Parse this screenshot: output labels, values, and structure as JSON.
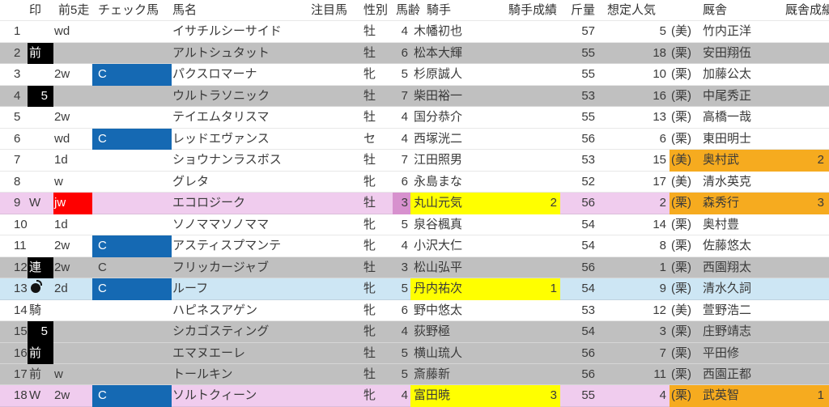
{
  "table": {
    "headers": [
      "印",
      "前5走",
      "チェック馬",
      "馬名",
      "注目馬",
      "性別",
      "馬齢",
      "騎手",
      "騎手成績",
      "斤量",
      "想定人気",
      "厩舎",
      "厩舎成績"
    ]
  },
  "colors": {
    "row_gray": "#c0c0c0",
    "row_pink": "#f0ccee",
    "row_lightblue": "#cde6f4",
    "check_blue": "#1569b3",
    "alert_red": "#fe0000",
    "highlight_yellow": "#ffff00",
    "highlight_orange": "#f6ab1f",
    "age_violet": "#d791ce",
    "mark_black": "#000000"
  },
  "rows": [
    {
      "num": "1",
      "mark": "",
      "mark_style": "none",
      "last5": "wd",
      "last5_style": "plain",
      "check": "",
      "check_style": "none",
      "horse": "イサチルシーサイド",
      "attention": "",
      "sex": "牡",
      "age": "4",
      "age_violet": false,
      "jockey": "木幡初也",
      "jockey_score": "",
      "jockey_yellow": false,
      "weight": "57",
      "pop": "5",
      "region": "(美)",
      "stable": "竹内正洋",
      "stable_score": "",
      "stable_orange": false,
      "bg": "white"
    },
    {
      "num": "2",
      "mark": "前",
      "mark_style": "box",
      "last5": "",
      "last5_style": "none",
      "check": "",
      "check_style": "none",
      "horse": "アルトシュタット",
      "attention": "",
      "sex": "牡",
      "age": "6",
      "age_violet": false,
      "jockey": "松本大輝",
      "jockey_score": "",
      "jockey_yellow": false,
      "weight": "55",
      "pop": "18",
      "region": "(栗)",
      "stable": "安田翔伍",
      "stable_score": "",
      "stable_orange": false,
      "bg": "gray"
    },
    {
      "num": "3",
      "mark": "",
      "mark_style": "none",
      "last5": "2w",
      "last5_style": "plain",
      "check": "C",
      "check_style": "blue",
      "horse": "パクスロマーナ",
      "attention": "",
      "sex": "牝",
      "age": "5",
      "age_violet": false,
      "jockey": "杉原誠人",
      "jockey_score": "",
      "jockey_yellow": false,
      "weight": "55",
      "pop": "10",
      "region": "(栗)",
      "stable": "加藤公太",
      "stable_score": "",
      "stable_orange": false,
      "bg": "white"
    },
    {
      "num": "4",
      "mark": "5",
      "mark_style": "box-right",
      "last5": "",
      "last5_style": "none",
      "check": "",
      "check_style": "none",
      "horse": "ウルトラソニック",
      "attention": "",
      "sex": "牡",
      "age": "7",
      "age_violet": false,
      "jockey": "柴田裕一",
      "jockey_score": "",
      "jockey_yellow": false,
      "weight": "53",
      "pop": "16",
      "region": "(栗)",
      "stable": "中尾秀正",
      "stable_score": "",
      "stable_orange": false,
      "bg": "gray"
    },
    {
      "num": "5",
      "mark": "",
      "mark_style": "none",
      "last5": "2w",
      "last5_style": "plain",
      "check": "",
      "check_style": "none",
      "horse": "テイエムタリスマ",
      "attention": "",
      "sex": "牡",
      "age": "4",
      "age_violet": false,
      "jockey": "国分恭介",
      "jockey_score": "",
      "jockey_yellow": false,
      "weight": "55",
      "pop": "13",
      "region": "(栗)",
      "stable": "高橋一哉",
      "stable_score": "",
      "stable_orange": false,
      "bg": "white"
    },
    {
      "num": "6",
      "mark": "",
      "mark_style": "none",
      "last5": "wd",
      "last5_style": "plain",
      "check": "C",
      "check_style": "blue",
      "horse": "レッドエヴァンス",
      "attention": "",
      "sex": "セ",
      "age": "4",
      "age_violet": false,
      "jockey": "西塚洸二",
      "jockey_score": "",
      "jockey_yellow": false,
      "weight": "56",
      "pop": "6",
      "region": "(栗)",
      "stable": "東田明士",
      "stable_score": "",
      "stable_orange": false,
      "bg": "white"
    },
    {
      "num": "7",
      "mark": "",
      "mark_style": "none",
      "last5": "1d",
      "last5_style": "plain",
      "check": "",
      "check_style": "none",
      "horse": "ショウナンラスボス",
      "attention": "",
      "sex": "牡",
      "age": "7",
      "age_violet": false,
      "jockey": "江田照男",
      "jockey_score": "",
      "jockey_yellow": false,
      "weight": "53",
      "pop": "15",
      "region": "(美)",
      "stable": "奥村武",
      "stable_score": "2",
      "stable_orange": true,
      "bg": "white"
    },
    {
      "num": "8",
      "mark": "",
      "mark_style": "none",
      "last5": "w",
      "last5_style": "plain",
      "check": "",
      "check_style": "none",
      "horse": "グレタ",
      "attention": "",
      "sex": "牝",
      "age": "6",
      "age_violet": false,
      "jockey": "永島まな",
      "jockey_score": "",
      "jockey_yellow": false,
      "weight": "52",
      "pop": "17",
      "region": "(美)",
      "stable": "清水英克",
      "stable_score": "",
      "stable_orange": false,
      "bg": "white"
    },
    {
      "num": "9",
      "mark": "W",
      "mark_style": "plain",
      "last5": "jw",
      "last5_style": "red",
      "check": "",
      "check_style": "none",
      "horse": "エコロジーク",
      "attention": "",
      "sex": "牡",
      "age": "3",
      "age_violet": true,
      "jockey": "丸山元気",
      "jockey_score": "2",
      "jockey_yellow": true,
      "weight": "56",
      "pop": "2",
      "region": "(栗)",
      "stable": "森秀行",
      "stable_score": "3",
      "stable_orange": true,
      "bg": "pink"
    },
    {
      "num": "10",
      "mark": "",
      "mark_style": "none",
      "last5": "1d",
      "last5_style": "plain",
      "check": "",
      "check_style": "none",
      "horse": "ソノママソノママ",
      "attention": "",
      "sex": "牝",
      "age": "5",
      "age_violet": false,
      "jockey": "泉谷楓真",
      "jockey_score": "",
      "jockey_yellow": false,
      "weight": "54",
      "pop": "14",
      "region": "(栗)",
      "stable": "奥村豊",
      "stable_score": "",
      "stable_orange": false,
      "bg": "white"
    },
    {
      "num": "11",
      "mark": "",
      "mark_style": "none",
      "last5": "2w",
      "last5_style": "plain",
      "check": "C",
      "check_style": "blue",
      "horse": "アスティスプマンテ",
      "attention": "",
      "sex": "牝",
      "age": "4",
      "age_violet": false,
      "jockey": "小沢大仁",
      "jockey_score": "",
      "jockey_yellow": false,
      "weight": "54",
      "pop": "8",
      "region": "(栗)",
      "stable": "佐藤悠太",
      "stable_score": "",
      "stable_orange": false,
      "bg": "white"
    },
    {
      "num": "12",
      "mark": "連",
      "mark_style": "box",
      "last5": "2w",
      "last5_style": "plain",
      "check": "C",
      "check_style": "plain",
      "horse": "フリッカージャブ",
      "attention": "",
      "sex": "牡",
      "age": "3",
      "age_violet": false,
      "jockey": "松山弘平",
      "jockey_score": "",
      "jockey_yellow": false,
      "weight": "56",
      "pop": "1",
      "region": "(栗)",
      "stable": "西園翔太",
      "stable_score": "",
      "stable_orange": false,
      "bg": "gray"
    },
    {
      "num": "13",
      "mark": "",
      "mark_style": "bomb",
      "last5": "2d",
      "last5_style": "plain",
      "check": "C",
      "check_style": "blue",
      "horse": "ルーフ",
      "attention": "",
      "sex": "牝",
      "age": "5",
      "age_violet": false,
      "jockey": "丹内祐次",
      "jockey_score": "1",
      "jockey_yellow": true,
      "weight": "54",
      "pop": "9",
      "region": "(栗)",
      "stable": "清水久詞",
      "stable_score": "",
      "stable_orange": false,
      "bg": "blue"
    },
    {
      "num": "14",
      "mark": "騎",
      "mark_style": "plain",
      "last5": "",
      "last5_style": "none",
      "check": "",
      "check_style": "none",
      "horse": "ハピネスアゲン",
      "attention": "",
      "sex": "牝",
      "age": "6",
      "age_violet": false,
      "jockey": "野中悠太",
      "jockey_score": "",
      "jockey_yellow": false,
      "weight": "53",
      "pop": "12",
      "region": "(美)",
      "stable": "萱野浩二",
      "stable_score": "",
      "stable_orange": false,
      "bg": "white"
    },
    {
      "num": "15",
      "mark": "5",
      "mark_style": "box-right",
      "last5": "",
      "last5_style": "none",
      "check": "",
      "check_style": "none",
      "horse": "シカゴスティング",
      "attention": "",
      "sex": "牝",
      "age": "4",
      "age_violet": false,
      "jockey": "荻野極",
      "jockey_score": "",
      "jockey_yellow": false,
      "weight": "54",
      "pop": "3",
      "region": "(栗)",
      "stable": "庄野靖志",
      "stable_score": "",
      "stable_orange": false,
      "bg": "gray"
    },
    {
      "num": "16",
      "mark": "前",
      "mark_style": "box",
      "last5": "",
      "last5_style": "none",
      "check": "",
      "check_style": "none",
      "horse": "エマヌエーレ",
      "attention": "",
      "sex": "牡",
      "age": "5",
      "age_violet": false,
      "jockey": "横山琉人",
      "jockey_score": "",
      "jockey_yellow": false,
      "weight": "56",
      "pop": "7",
      "region": "(栗)",
      "stable": "平田修",
      "stable_score": "",
      "stable_orange": false,
      "bg": "gray"
    },
    {
      "num": "17",
      "mark": "前",
      "mark_style": "plain",
      "last5": "w",
      "last5_style": "plain",
      "check": "",
      "check_style": "none",
      "horse": "トールキン",
      "attention": "",
      "sex": "牡",
      "age": "5",
      "age_violet": false,
      "jockey": "斎藤新",
      "jockey_score": "",
      "jockey_yellow": false,
      "weight": "56",
      "pop": "11",
      "region": "(栗)",
      "stable": "西園正都",
      "stable_score": "",
      "stable_orange": false,
      "bg": "gray"
    },
    {
      "num": "18",
      "mark": "W",
      "mark_style": "plain",
      "last5": "2w",
      "last5_style": "plain",
      "check": "C",
      "check_style": "blue",
      "horse": "ソルトクィーン",
      "attention": "",
      "sex": "牝",
      "age": "4",
      "age_violet": false,
      "jockey": "富田暁",
      "jockey_score": "3",
      "jockey_yellow": true,
      "weight": "55",
      "pop": "4",
      "region": "(栗)",
      "stable": "武英智",
      "stable_score": "1",
      "stable_orange": true,
      "bg": "pink"
    }
  ]
}
